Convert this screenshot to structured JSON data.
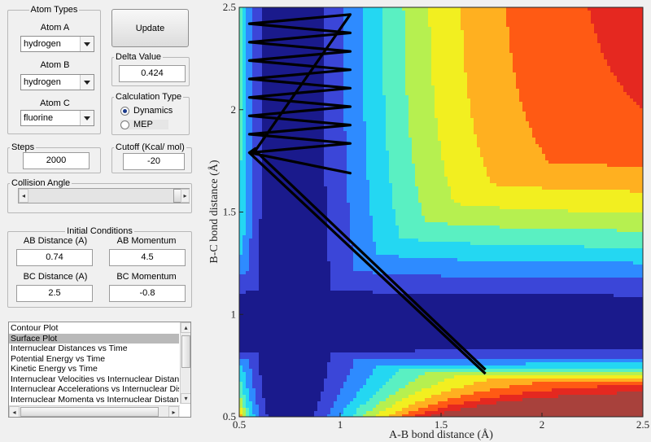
{
  "atom_types": {
    "legend": "Atom Types",
    "atom_a": {
      "label": "Atom A",
      "value": "hydrogen"
    },
    "atom_b": {
      "label": "Atom B",
      "value": "hydrogen"
    },
    "atom_c": {
      "label": "Atom C",
      "value": "fluorine"
    }
  },
  "update_button": "Update",
  "delta": {
    "label": "Delta Value",
    "value": "0.424"
  },
  "calc_type": {
    "legend": "Calculation Type",
    "options": [
      "Dynamics",
      "MEP"
    ],
    "selected": "Dynamics"
  },
  "steps": {
    "label": "Steps",
    "value": "2000"
  },
  "cutoff": {
    "label": "Cutoff (Kcal/ mol)",
    "value": "-20"
  },
  "collision_angle": {
    "label": "Collision Angle"
  },
  "initial_conditions": {
    "legend": "Initial Conditions",
    "ab_distance": {
      "label": "AB Distance (A)",
      "value": "0.74"
    },
    "ab_momentum": {
      "label": "AB Momentum",
      "value": "4.5"
    },
    "bc_distance": {
      "label": "BC Distance (A)",
      "value": "2.5"
    },
    "bc_momentum": {
      "label": "BC Momentum",
      "value": "-0.8"
    }
  },
  "plot_list": {
    "items": [
      "Contour Plot",
      "Surface Plot",
      "Internuclear Distances vs Time",
      "Potential Energy vs Time",
      "Kinetic Energy vs Time",
      "Internuclear Velocities vs Internuclear Distances",
      "Internuclear Accelerations vs Internuclear Distances",
      "Internuclear Momenta vs Internuclear Distances"
    ],
    "selected": "Surface Plot"
  },
  "chart_data": {
    "type": "contour",
    "xlabel": "A-B bond distance (Å)",
    "ylabel": "B-C bond distance (Å)",
    "xlim": [
      0.5,
      2.5
    ],
    "ylim": [
      0.5,
      2.5
    ],
    "xticks": [
      "0.5",
      "1",
      "1.5",
      "2",
      "2.5"
    ],
    "yticks": [
      "0.5",
      "1",
      "1.5",
      "2",
      "2.5"
    ],
    "colormap": [
      "#1a1a8c",
      "#3b46d8",
      "#2e8bff",
      "#24d7f2",
      "#5af0c2",
      "#b6f050",
      "#f2ef20",
      "#ffb020",
      "#ff5a14",
      "#e52820",
      "#a8413c"
    ],
    "trajectory": {
      "color": "#000000",
      "start": [
        1.72,
        0.71
      ],
      "turn": [
        0.55,
        1.79
      ],
      "lobe": [
        [
          0.55,
          1.79
        ],
        [
          1.05,
          1.69
        ],
        [
          0.55,
          1.79
        ],
        [
          0.58,
          1.81
        ]
      ],
      "oscillation_x_range": [
        0.55,
        1.05
      ],
      "oscillation_y_range": [
        1.79,
        2.5
      ]
    }
  }
}
